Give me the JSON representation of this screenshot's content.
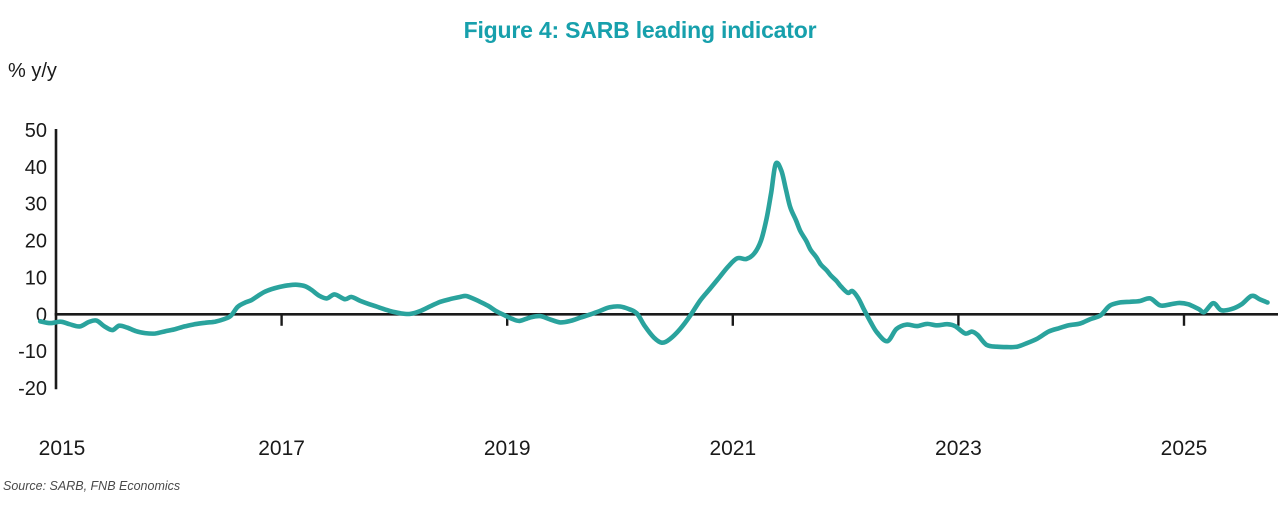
{
  "title": "Figure 4: SARB leading indicator",
  "source": "Source: SARB, FNB Economics",
  "chart_data": {
    "type": "line",
    "title": "Figure 4: SARB leading indicator",
    "ylabel": "% y/y",
    "xlabel": "",
    "ylim": [
      -20,
      50
    ],
    "xlim": [
      2014.85,
      2025.85
    ],
    "yticks": [
      50,
      40,
      30,
      20,
      10,
      0,
      -10,
      -20
    ],
    "xticks": [
      2015,
      2017,
      2019,
      2021,
      2023,
      2025
    ],
    "grid": false,
    "legend_position": "none",
    "colors": {
      "line": "#2AA39D",
      "title": "#17A0AC",
      "axis": "#1a1a1a",
      "source_text": "#4a4a4a"
    },
    "series": [
      {
        "name": "SARB leading indicator, % y/y",
        "points": [
          [
            2014.86,
            -1.9
          ],
          [
            2014.95,
            -2.4
          ],
          [
            2015.04,
            -2.0
          ],
          [
            2015.12,
            -2.7
          ],
          [
            2015.21,
            -3.3
          ],
          [
            2015.29,
            -2.1
          ],
          [
            2015.36,
            -1.7
          ],
          [
            2015.43,
            -3.3
          ],
          [
            2015.5,
            -4.3
          ],
          [
            2015.56,
            -3.1
          ],
          [
            2015.63,
            -3.6
          ],
          [
            2015.71,
            -4.6
          ],
          [
            2015.79,
            -5.1
          ],
          [
            2015.88,
            -5.2
          ],
          [
            2015.97,
            -4.6
          ],
          [
            2016.05,
            -4.1
          ],
          [
            2016.14,
            -3.3
          ],
          [
            2016.23,
            -2.7
          ],
          [
            2016.32,
            -2.3
          ],
          [
            2016.41,
            -2.0
          ],
          [
            2016.49,
            -1.3
          ],
          [
            2016.55,
            -0.4
          ],
          [
            2016.61,
            2.0
          ],
          [
            2016.67,
            3.1
          ],
          [
            2016.73,
            3.8
          ],
          [
            2016.79,
            5.0
          ],
          [
            2016.85,
            6.1
          ],
          [
            2016.91,
            6.8
          ],
          [
            2016.98,
            7.4
          ],
          [
            2017.07,
            7.9
          ],
          [
            2017.14,
            8.0
          ],
          [
            2017.21,
            7.6
          ],
          [
            2017.27,
            6.5
          ],
          [
            2017.33,
            5.1
          ],
          [
            2017.4,
            4.3
          ],
          [
            2017.47,
            5.4
          ],
          [
            2017.56,
            4.1
          ],
          [
            2017.62,
            4.7
          ],
          [
            2017.7,
            3.6
          ],
          [
            2017.78,
            2.7
          ],
          [
            2017.87,
            1.8
          ],
          [
            2017.96,
            0.9
          ],
          [
            2018.05,
            0.3
          ],
          [
            2018.14,
            0.1
          ],
          [
            2018.23,
            0.9
          ],
          [
            2018.32,
            2.2
          ],
          [
            2018.4,
            3.3
          ],
          [
            2018.49,
            4.1
          ],
          [
            2018.58,
            4.7
          ],
          [
            2018.63,
            5.0
          ],
          [
            2018.67,
            4.6
          ],
          [
            2018.76,
            3.4
          ],
          [
            2018.83,
            2.3
          ],
          [
            2018.9,
            0.9
          ],
          [
            2018.98,
            -0.3
          ],
          [
            2019.04,
            -1.2
          ],
          [
            2019.11,
            -1.8
          ],
          [
            2019.2,
            -0.9
          ],
          [
            2019.29,
            -0.5
          ],
          [
            2019.38,
            -1.4
          ],
          [
            2019.47,
            -2.2
          ],
          [
            2019.56,
            -1.8
          ],
          [
            2019.65,
            -0.9
          ],
          [
            2019.74,
            0.0
          ],
          [
            2019.82,
            0.9
          ],
          [
            2019.91,
            1.9
          ],
          [
            2020.0,
            2.1
          ],
          [
            2020.08,
            1.4
          ],
          [
            2020.15,
            0.2
          ],
          [
            2020.22,
            -3.2
          ],
          [
            2020.3,
            -6.3
          ],
          [
            2020.37,
            -7.7
          ],
          [
            2020.44,
            -6.8
          ],
          [
            2020.53,
            -4.1
          ],
          [
            2020.62,
            -0.5
          ],
          [
            2020.71,
            3.7
          ],
          [
            2020.8,
            7.0
          ],
          [
            2020.88,
            10.0
          ],
          [
            2020.96,
            13.0
          ],
          [
            2021.04,
            15.2
          ],
          [
            2021.12,
            15.0
          ],
          [
            2021.19,
            16.5
          ],
          [
            2021.25,
            20.0
          ],
          [
            2021.3,
            26.0
          ],
          [
            2021.34,
            33.0
          ],
          [
            2021.38,
            40.8
          ],
          [
            2021.43,
            39.0
          ],
          [
            2021.47,
            34.0
          ],
          [
            2021.51,
            29.0
          ],
          [
            2021.56,
            25.5
          ],
          [
            2021.6,
            22.5
          ],
          [
            2021.65,
            20.0
          ],
          [
            2021.69,
            17.5
          ],
          [
            2021.74,
            15.5
          ],
          [
            2021.78,
            13.5
          ],
          [
            2021.83,
            12.0
          ],
          [
            2021.87,
            10.5
          ],
          [
            2021.92,
            9.0
          ],
          [
            2021.96,
            7.5
          ],
          [
            2022.02,
            5.8
          ],
          [
            2022.06,
            6.3
          ],
          [
            2022.11,
            4.5
          ],
          [
            2022.16,
            1.5
          ],
          [
            2022.22,
            -2.0
          ],
          [
            2022.28,
            -5.0
          ],
          [
            2022.37,
            -7.3
          ],
          [
            2022.45,
            -4.0
          ],
          [
            2022.54,
            -2.8
          ],
          [
            2022.63,
            -3.2
          ],
          [
            2022.72,
            -2.6
          ],
          [
            2022.81,
            -3.0
          ],
          [
            2022.9,
            -2.7
          ],
          [
            2022.97,
            -3.2
          ],
          [
            2023.06,
            -5.2
          ],
          [
            2023.12,
            -4.7
          ],
          [
            2023.17,
            -5.6
          ],
          [
            2023.25,
            -8.3
          ],
          [
            2023.34,
            -8.8
          ],
          [
            2023.43,
            -8.9
          ],
          [
            2023.52,
            -8.8
          ],
          [
            2023.61,
            -7.8
          ],
          [
            2023.7,
            -6.6
          ],
          [
            2023.8,
            -4.7
          ],
          [
            2023.89,
            -3.8
          ],
          [
            2023.98,
            -3.0
          ],
          [
            2024.08,
            -2.5
          ],
          [
            2024.17,
            -1.3
          ],
          [
            2024.26,
            -0.3
          ],
          [
            2024.34,
            2.3
          ],
          [
            2024.43,
            3.2
          ],
          [
            2024.52,
            3.4
          ],
          [
            2024.61,
            3.6
          ],
          [
            2024.7,
            4.3
          ],
          [
            2024.79,
            2.4
          ],
          [
            2024.88,
            2.7
          ],
          [
            2024.96,
            3.1
          ],
          [
            2025.04,
            2.7
          ],
          [
            2025.13,
            1.4
          ],
          [
            2025.18,
            0.6
          ],
          [
            2025.26,
            3.0
          ],
          [
            2025.33,
            1.1
          ],
          [
            2025.42,
            1.4
          ],
          [
            2025.51,
            2.7
          ],
          [
            2025.6,
            5.0
          ],
          [
            2025.67,
            4.1
          ],
          [
            2025.74,
            3.2
          ]
        ]
      }
    ]
  }
}
